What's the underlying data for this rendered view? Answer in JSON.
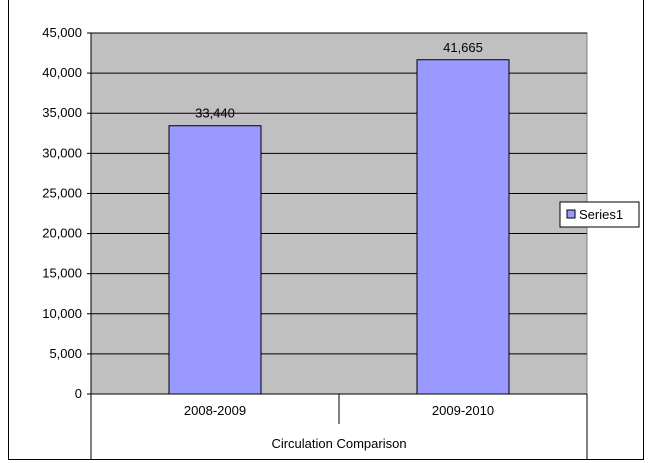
{
  "chart_data": {
    "type": "bar",
    "categories": [
      "2008-2009",
      "2009-2010"
    ],
    "series": [
      {
        "name": "Series1",
        "values": [
          33440,
          41665
        ],
        "color": "#9999FF"
      }
    ],
    "data_labels": [
      "33,440",
      "41,665"
    ],
    "xlabel": "Circulation Comparison",
    "ylabel": "",
    "ylim": [
      0,
      45000
    ],
    "yticks": [
      0,
      5000,
      10000,
      15000,
      20000,
      25000,
      30000,
      35000,
      40000,
      45000
    ],
    "ytick_labels": [
      "0",
      "5,000",
      "10,000",
      "15,000",
      "20,000",
      "25,000",
      "30,000",
      "35,000",
      "40,000",
      "45,000"
    ],
    "grid": true,
    "plot_background": "#C0C0C0",
    "legend_position": "right"
  }
}
